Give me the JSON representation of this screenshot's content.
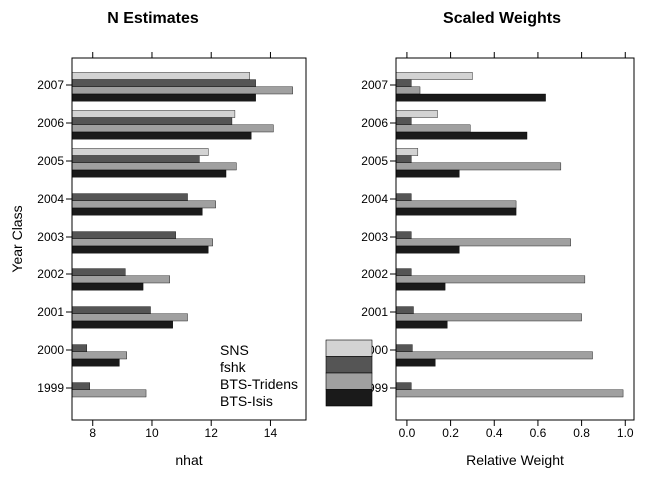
{
  "chart_data": [
    {
      "type": "bar",
      "orientation": "horizontal",
      "title": "N Estimates",
      "xlabel": "nhat",
      "ylabel": "Year Class",
      "xlim": [
        7.3,
        15.2
      ],
      "xticks": [
        8,
        10,
        12,
        14
      ],
      "grid": false,
      "categories": [
        "1999",
        "2000",
        "2001",
        "2002",
        "2003",
        "2004",
        "2005",
        "2006",
        "2007"
      ],
      "series": [
        {
          "name": "SNS",
          "color": "#d3d3d3",
          "values": [
            null,
            null,
            null,
            null,
            null,
            null,
            11.9,
            12.8,
            13.3
          ]
        },
        {
          "name": "fshk",
          "color": "#555555",
          "values": [
            7.9,
            7.8,
            9.95,
            9.1,
            10.8,
            11.2,
            11.6,
            12.7,
            13.5
          ]
        },
        {
          "name": "BTS-Tridens",
          "color": "#a0a0a0",
          "values": [
            9.8,
            9.15,
            11.2,
            10.6,
            12.05,
            12.15,
            12.85,
            14.1,
            14.75
          ]
        },
        {
          "name": "BTS-Isis",
          "color": "#1a1a1a",
          "values": [
            null,
            8.9,
            10.7,
            9.7,
            11.9,
            11.7,
            12.5,
            13.35,
            13.5
          ]
        }
      ],
      "legend": {
        "position": "bottom-right",
        "entries": [
          "SNS",
          "fshk",
          "BTS-Tridens",
          "BTS-Isis"
        ]
      }
    },
    {
      "type": "bar",
      "orientation": "horizontal",
      "title": "Scaled Weights",
      "xlabel": "Relative Weight",
      "xlim": [
        -0.05,
        1.04
      ],
      "xticks": [
        0.0,
        0.2,
        0.4,
        0.6,
        0.8,
        1.0
      ],
      "grid": false,
      "categories": [
        "1999",
        "2000",
        "2001",
        "2002",
        "2003",
        "2004",
        "2005",
        "2006",
        "2007"
      ],
      "series": [
        {
          "name": "SNS",
          "color": "#d3d3d3",
          "values": [
            null,
            null,
            null,
            null,
            null,
            null,
            0.05,
            0.14,
            0.3
          ]
        },
        {
          "name": "fshk",
          "color": "#555555",
          "values": [
            0.02,
            0.025,
            0.03,
            0.02,
            0.02,
            0.02,
            0.02,
            0.02,
            0.02
          ]
        },
        {
          "name": "BTS-Tridens",
          "color": "#a0a0a0",
          "values": [
            0.99,
            0.85,
            0.8,
            0.815,
            0.75,
            0.5,
            0.705,
            0.29,
            0.06
          ]
        },
        {
          "name": "BTS-Isis",
          "color": "#1a1a1a",
          "values": [
            null,
            0.13,
            0.185,
            0.175,
            0.24,
            0.5,
            0.24,
            0.55,
            0.635
          ]
        }
      ]
    }
  ]
}
